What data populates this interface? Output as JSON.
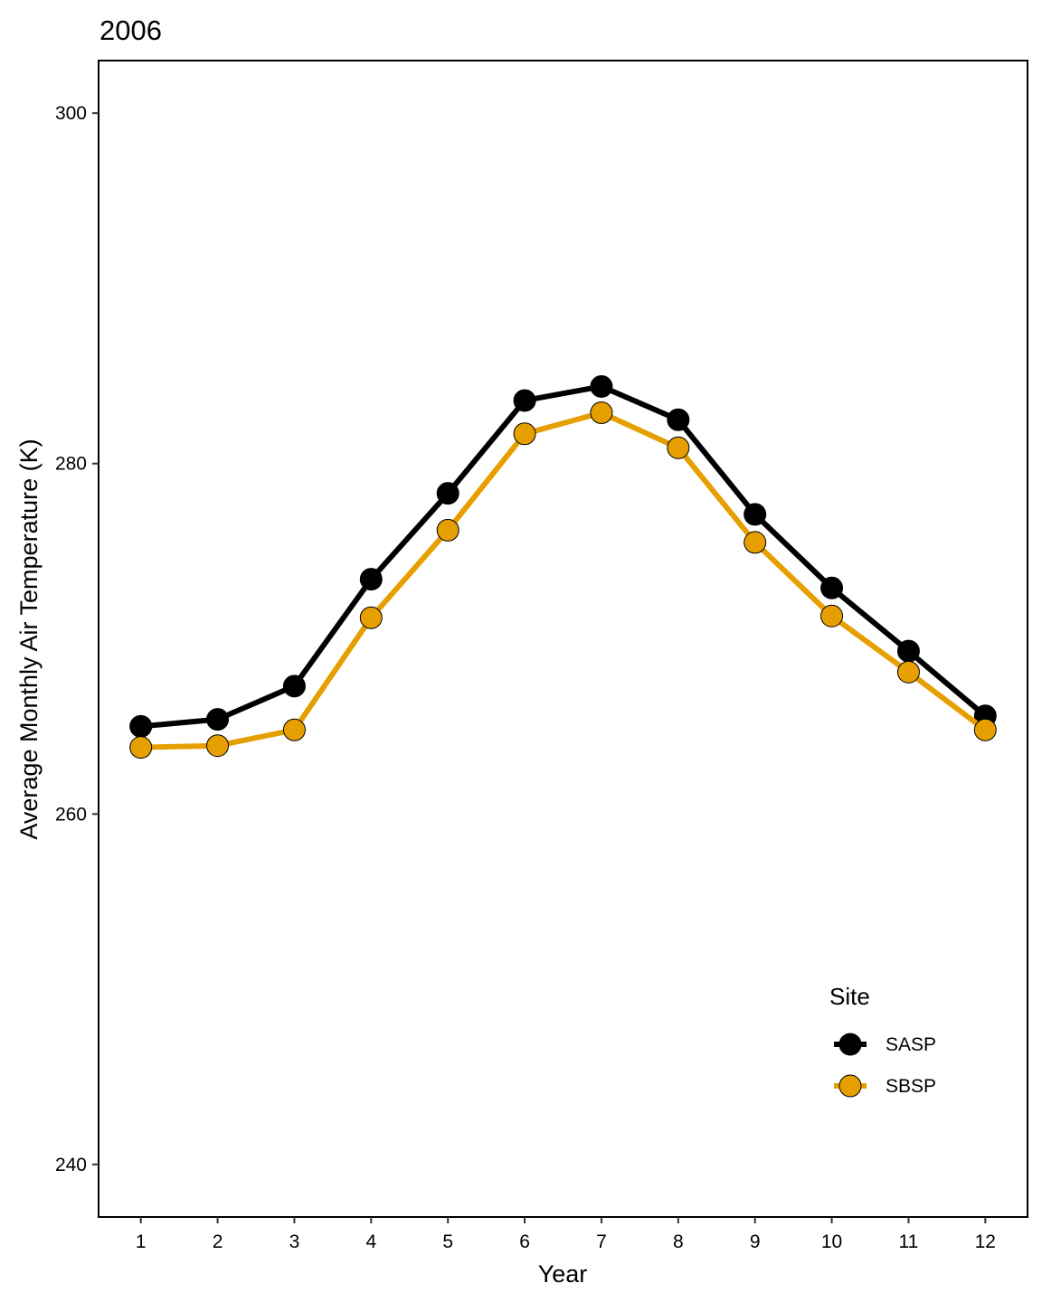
{
  "chart_data": {
    "type": "line",
    "title": "2006",
    "xlabel": "Year",
    "ylabel": "Average Monthly Air Temperature (K)",
    "x": [
      1,
      2,
      3,
      4,
      5,
      6,
      7,
      8,
      9,
      10,
      11,
      12
    ],
    "x_ticks": [
      "1",
      "2",
      "3",
      "4",
      "5",
      "6",
      "7",
      "8",
      "9",
      "10",
      "11",
      "12"
    ],
    "xlim": [
      0.45,
      12.55
    ],
    "ylim": [
      237,
      303
    ],
    "y_ticks": [
      240,
      260,
      280,
      300
    ],
    "grid": false,
    "legend": {
      "title": "Site",
      "position": "bottom-right"
    },
    "series": [
      {
        "name": "SASP",
        "color": "#000000",
        "values": [
          265.0,
          265.4,
          267.3,
          273.4,
          278.3,
          283.6,
          284.4,
          282.5,
          277.1,
          272.9,
          269.3,
          265.6
        ]
      },
      {
        "name": "SBSP",
        "color": "#E69F00",
        "values": [
          263.8,
          263.9,
          264.8,
          271.2,
          276.2,
          281.7,
          282.9,
          280.9,
          275.5,
          271.3,
          268.1,
          264.8
        ]
      }
    ]
  }
}
